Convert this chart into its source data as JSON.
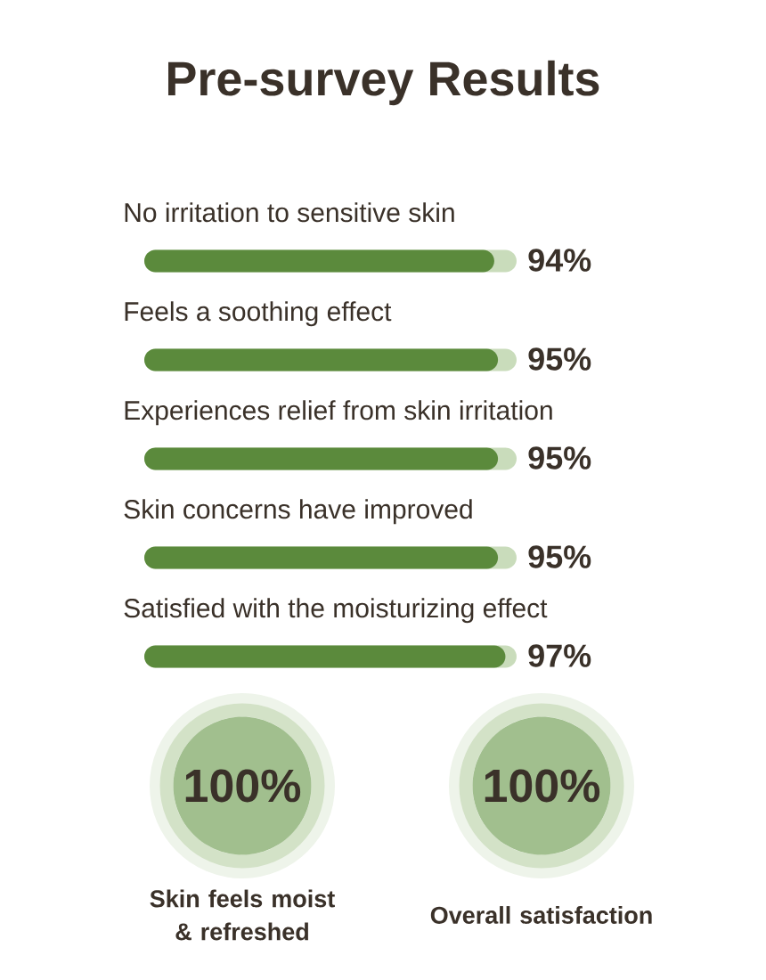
{
  "chart_data": [
    {
      "type": "bar",
      "orientation": "horizontal",
      "title": "Pre-survey Results",
      "categories": [
        "No irritation to sensitive skin",
        "Feels a soothing effect",
        "Experiences relief from skin irritation",
        "Skin concerns have improved",
        "Satisfied with the moisturizing effect"
      ],
      "values": [
        94,
        95,
        95,
        95,
        97
      ],
      "value_labels": [
        "94%",
        "95%",
        "95%",
        "95%",
        "97%"
      ],
      "color": "#5b8a3c",
      "xlim": [
        0,
        100
      ],
      "tick_labels": "y"
    },
    {
      "type": "other",
      "categories": [
        "Skin feels moist & refreshed",
        "Overall satisfaction"
      ],
      "values": [
        100,
        100
      ],
      "value_labels": [
        "100%",
        "100%"
      ],
      "colors": [
        "#a1bf8e",
        "#a1bf8e"
      ]
    }
  ]
}
